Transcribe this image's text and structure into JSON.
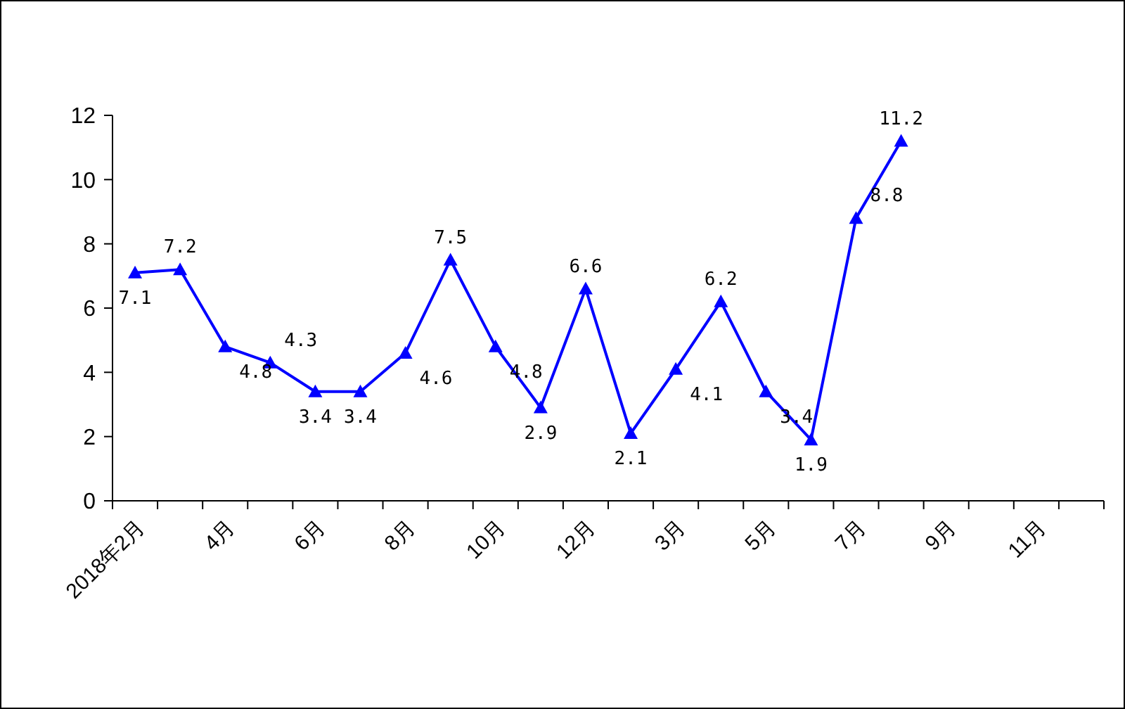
{
  "chart_data": {
    "type": "line",
    "categories": [
      "2018年2月",
      null,
      "4月",
      null,
      "6月",
      null,
      "8月",
      null,
      "10月",
      null,
      "12月",
      null,
      "3月",
      null,
      "5月",
      null,
      "7月",
      null,
      "9月",
      null,
      "11月",
      null
    ],
    "series": [
      {
        "color": "#0000ff",
        "values": [
          7.1,
          7.2,
          4.8,
          4.3,
          3.4,
          3.4,
          4.6,
          7.5,
          4.8,
          2.9,
          6.6,
          2.1,
          4.1,
          6.2,
          3.4,
          1.9,
          8.8,
          11.2,
          null,
          null,
          null,
          null
        ]
      }
    ],
    "ylim": [
      0,
      12
    ],
    "yticks": [
      0,
      2,
      4,
      6,
      8,
      10,
      12
    ],
    "grid": false,
    "marker": "triangle",
    "line_style": "solid",
    "data_labels": true
  }
}
